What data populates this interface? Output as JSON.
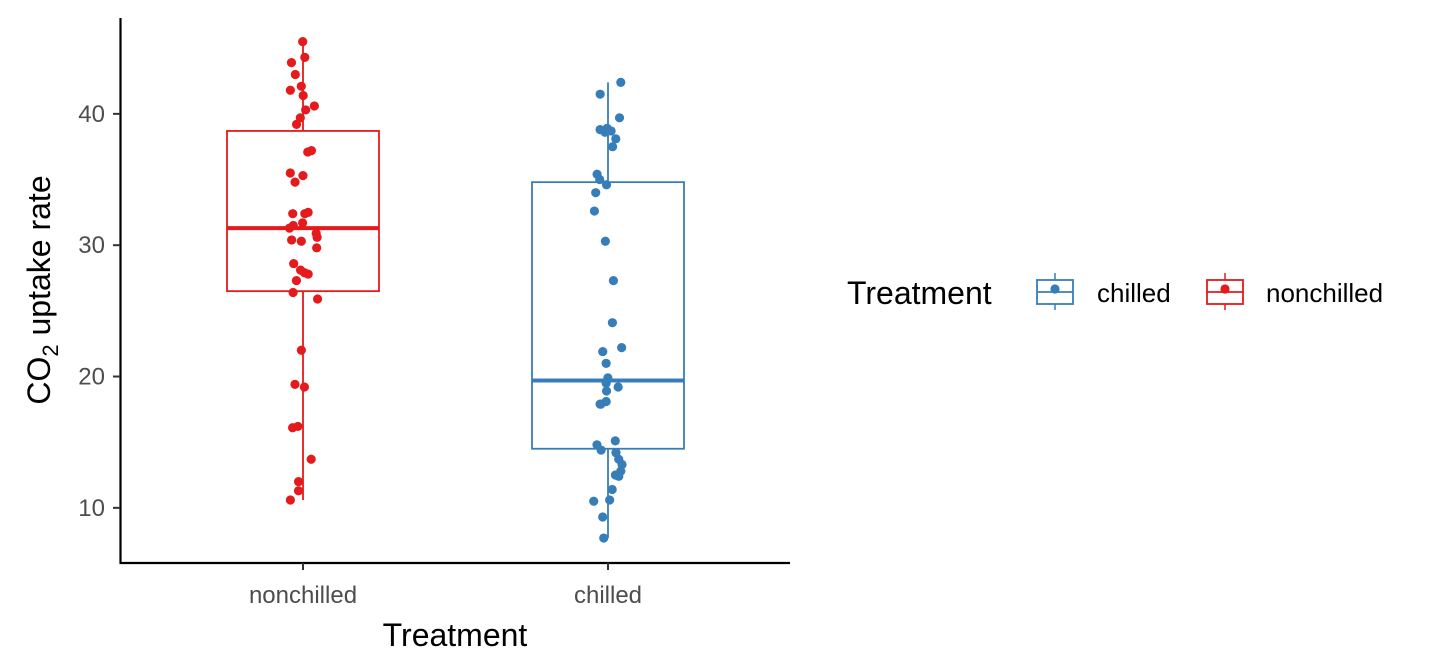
{
  "chart_data": {
    "type": "box",
    "xlabel": "Treatment",
    "ylabel_main": "CO",
    "ylabel_sub": "2",
    "ylabel_rest": " uptake rate",
    "ylim": [
      5.8,
      47.3
    ],
    "yticks": [
      10,
      20,
      30,
      40
    ],
    "categories": [
      "nonchilled",
      "chilled"
    ],
    "legend": {
      "title": "Treatment",
      "position": "right",
      "items": [
        {
          "label": "chilled",
          "color": "#377eb8"
        },
        {
          "label": "nonchilled",
          "color": "#e41a1c"
        }
      ]
    },
    "boxes": [
      {
        "category": "nonchilled",
        "color": "#e41a1c",
        "lower_whisker": 10.6,
        "q1": 26.5,
        "median": 31.3,
        "q3": 38.7,
        "upper_whisker": 45.5
      },
      {
        "category": "chilled",
        "color": "#377eb8",
        "lower_whisker": 7.7,
        "q1": 14.5,
        "median": 19.7,
        "q3": 34.8,
        "upper_whisker": 42.4
      }
    ],
    "points": {
      "nonchilled": [
        45.5,
        44.3,
        43.9,
        43.0,
        42.1,
        41.4,
        41.8,
        40.6,
        40.3,
        39.7,
        39.2,
        37.2,
        37.1,
        35.5,
        35.3,
        34.8,
        32.5,
        32.4,
        32.4,
        31.7,
        31.5,
        31.3,
        30.9,
        30.6,
        30.4,
        30.3,
        29.8,
        28.6,
        28.1,
        27.9,
        27.8,
        27.3,
        26.4,
        25.9,
        22.0,
        19.4,
        19.2,
        16.2,
        16.1,
        13.7,
        12.0,
        11.3,
        10.6
      ],
      "chilled": [
        42.4,
        41.5,
        39.7,
        38.9,
        38.8,
        38.7,
        38.6,
        38.1,
        37.5,
        35.4,
        35.0,
        34.6,
        34.0,
        32.6,
        30.3,
        27.3,
        24.1,
        22.2,
        21.9,
        21.0,
        19.9,
        19.5,
        19.2,
        18.9,
        18.1,
        17.9,
        17.9,
        15.1,
        14.8,
        14.4,
        14.2,
        13.7,
        13.3,
        12.8,
        12.4,
        12.5,
        11.4,
        10.6,
        10.5,
        9.3,
        7.7
      ]
    }
  }
}
